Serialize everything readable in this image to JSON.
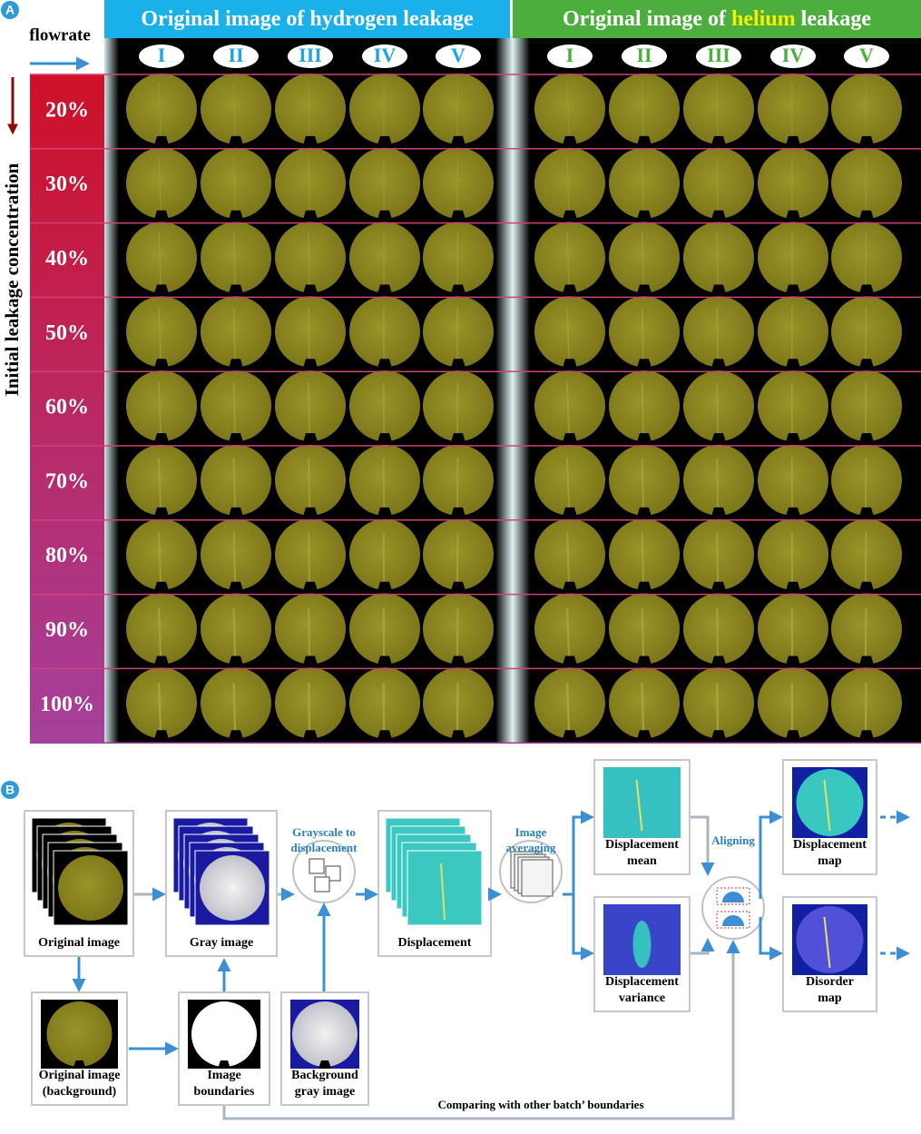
{
  "panel_a": {
    "label": "A",
    "flowrate": "flowrate",
    "vertical_label": "Initial leakage concentration",
    "rows": [
      "20%",
      "30%",
      "40%",
      "50%",
      "60%",
      "70%",
      "80%",
      "90%",
      "100%"
    ],
    "groups": [
      {
        "title_parts": [
          "Original image of hydrogen leakage"
        ],
        "columns": [
          "I",
          "II",
          "III",
          "IV",
          "V"
        ]
      },
      {
        "title_parts": [
          "Original image of ",
          "helium",
          " leakage"
        ],
        "columns": [
          "I",
          "II",
          "III",
          "IV",
          "V"
        ]
      }
    ]
  },
  "panel_b": {
    "label": "B",
    "nodes": [
      {
        "label": [
          "Original image"
        ]
      },
      {
        "label": [
          "Gray image"
        ]
      },
      {
        "label": [
          "Displacement"
        ]
      },
      {
        "label": [
          "Displacement",
          "mean"
        ]
      },
      {
        "label": [
          "Displacement",
          "variance"
        ]
      },
      {
        "label": [
          "Displacement",
          "map"
        ]
      },
      {
        "label": [
          "Disorder",
          "map"
        ]
      },
      {
        "label": [
          "Original image",
          "(background)"
        ]
      },
      {
        "label": [
          "Image",
          "boundaries"
        ]
      },
      {
        "label": [
          "Background",
          "gray image"
        ]
      }
    ],
    "steps": [
      {
        "label": [
          "Grayscale to",
          "displacement"
        ]
      },
      {
        "label": [
          "Image",
          "averaging"
        ]
      },
      {
        "label": [
          "Aligning"
        ]
      }
    ],
    "bottom_note": "Comparing with other batch’ boundaries"
  }
}
